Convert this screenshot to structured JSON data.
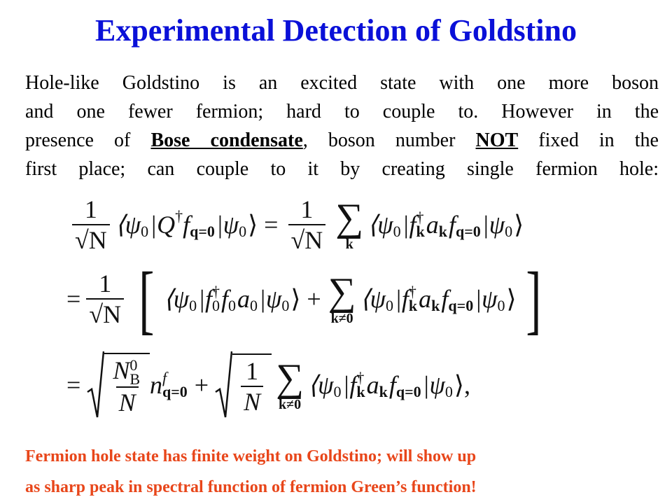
{
  "header": {
    "title": "Experimental Detection of Goldstino"
  },
  "body": {
    "lines": [
      [
        "Hole-like Goldstino is an excited state with one more boson"
      ],
      [
        "and one fewer fermion; hard to couple to. However in the"
      ],
      [
        "presence of ",
        "Bose condensate",
        ", boson number ",
        "NOT",
        " fixed in the"
      ],
      [
        "first place; can couple to it by creating single fermion hole:"
      ]
    ]
  },
  "equations": [
    [
      "1",
      "√N",
      "⟨ψ",
      "0",
      "|Q",
      "†",
      "f",
      "q=0",
      "|ψ",
      "0",
      "⟩ =",
      "1",
      "√N",
      "∑",
      "k",
      "⟨ψ",
      "0",
      "|f",
      "†",
      "k",
      "a",
      "k",
      "f",
      "q=0",
      "|ψ",
      "0",
      "⟩"
    ],
    [
      "=",
      "1",
      "√N",
      "[",
      "⟨ψ",
      "0",
      "|f",
      "†",
      "0",
      "f",
      "0",
      "a",
      "0",
      "|ψ",
      "0",
      "⟩ +",
      "∑",
      "k≠0",
      "⟨ψ",
      "0",
      "|f",
      "†",
      "k",
      "a",
      "k",
      "f",
      "q=0",
      "|ψ",
      "0",
      "⟩",
      "]"
    ],
    [
      "=",
      "N",
      "0",
      "B",
      "N",
      "n",
      "f",
      "q=0",
      "+",
      "1",
      "N",
      "∑",
      "k≠0",
      "⟨ψ",
      "0",
      "|f",
      "†",
      "k",
      "a",
      "k",
      "f",
      "q=0",
      "|ψ",
      "0",
      "⟩,"
    ]
  ],
  "footer": {
    "lines": [
      "Fermion hole state has finite weight on Goldstino; will show up",
      "as sharp peak in spectral function of fermion Green’s function!"
    ]
  }
}
